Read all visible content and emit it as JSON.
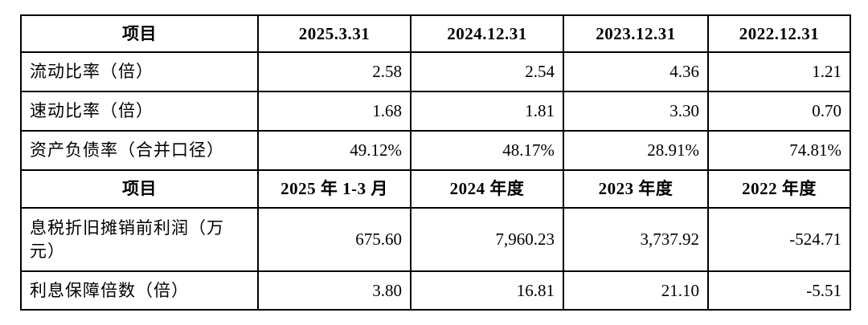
{
  "table": {
    "sections": [
      {
        "header": {
          "item": "项目",
          "c1": "2025.3.31",
          "c2": "2024.12.31",
          "c3": "2023.12.31",
          "c4": "2022.12.31"
        },
        "rows": [
          {
            "label": "流动比率（倍）",
            "v1": "2.58",
            "v2": "2.54",
            "v3": "4.36",
            "v4": "1.21"
          },
          {
            "label": "速动比率（倍）",
            "v1": "1.68",
            "v2": "1.81",
            "v3": "3.30",
            "v4": "0.70"
          },
          {
            "label": "资产负债率（合并口径）",
            "v1": "49.12%",
            "v2": "48.17%",
            "v3": "28.91%",
            "v4": "74.81%"
          }
        ]
      },
      {
        "header": {
          "item": "项目",
          "c1": "2025 年 1-3 月",
          "c2": "2024 年度",
          "c3": "2023 年度",
          "c4": "2022 年度"
        },
        "rows": [
          {
            "label": "息税折旧摊销前利润（万元）",
            "v1": "675.60",
            "v2": "7,960.23",
            "v3": "3,737.92",
            "v4": "-524.71"
          },
          {
            "label": "利息保障倍数（倍）",
            "v1": "3.80",
            "v2": "16.81",
            "v3": "21.10",
            "v4": "-5.51"
          }
        ]
      }
    ]
  },
  "colors": {
    "border": "#000000",
    "text": "#000000",
    "background": "#ffffff"
  }
}
